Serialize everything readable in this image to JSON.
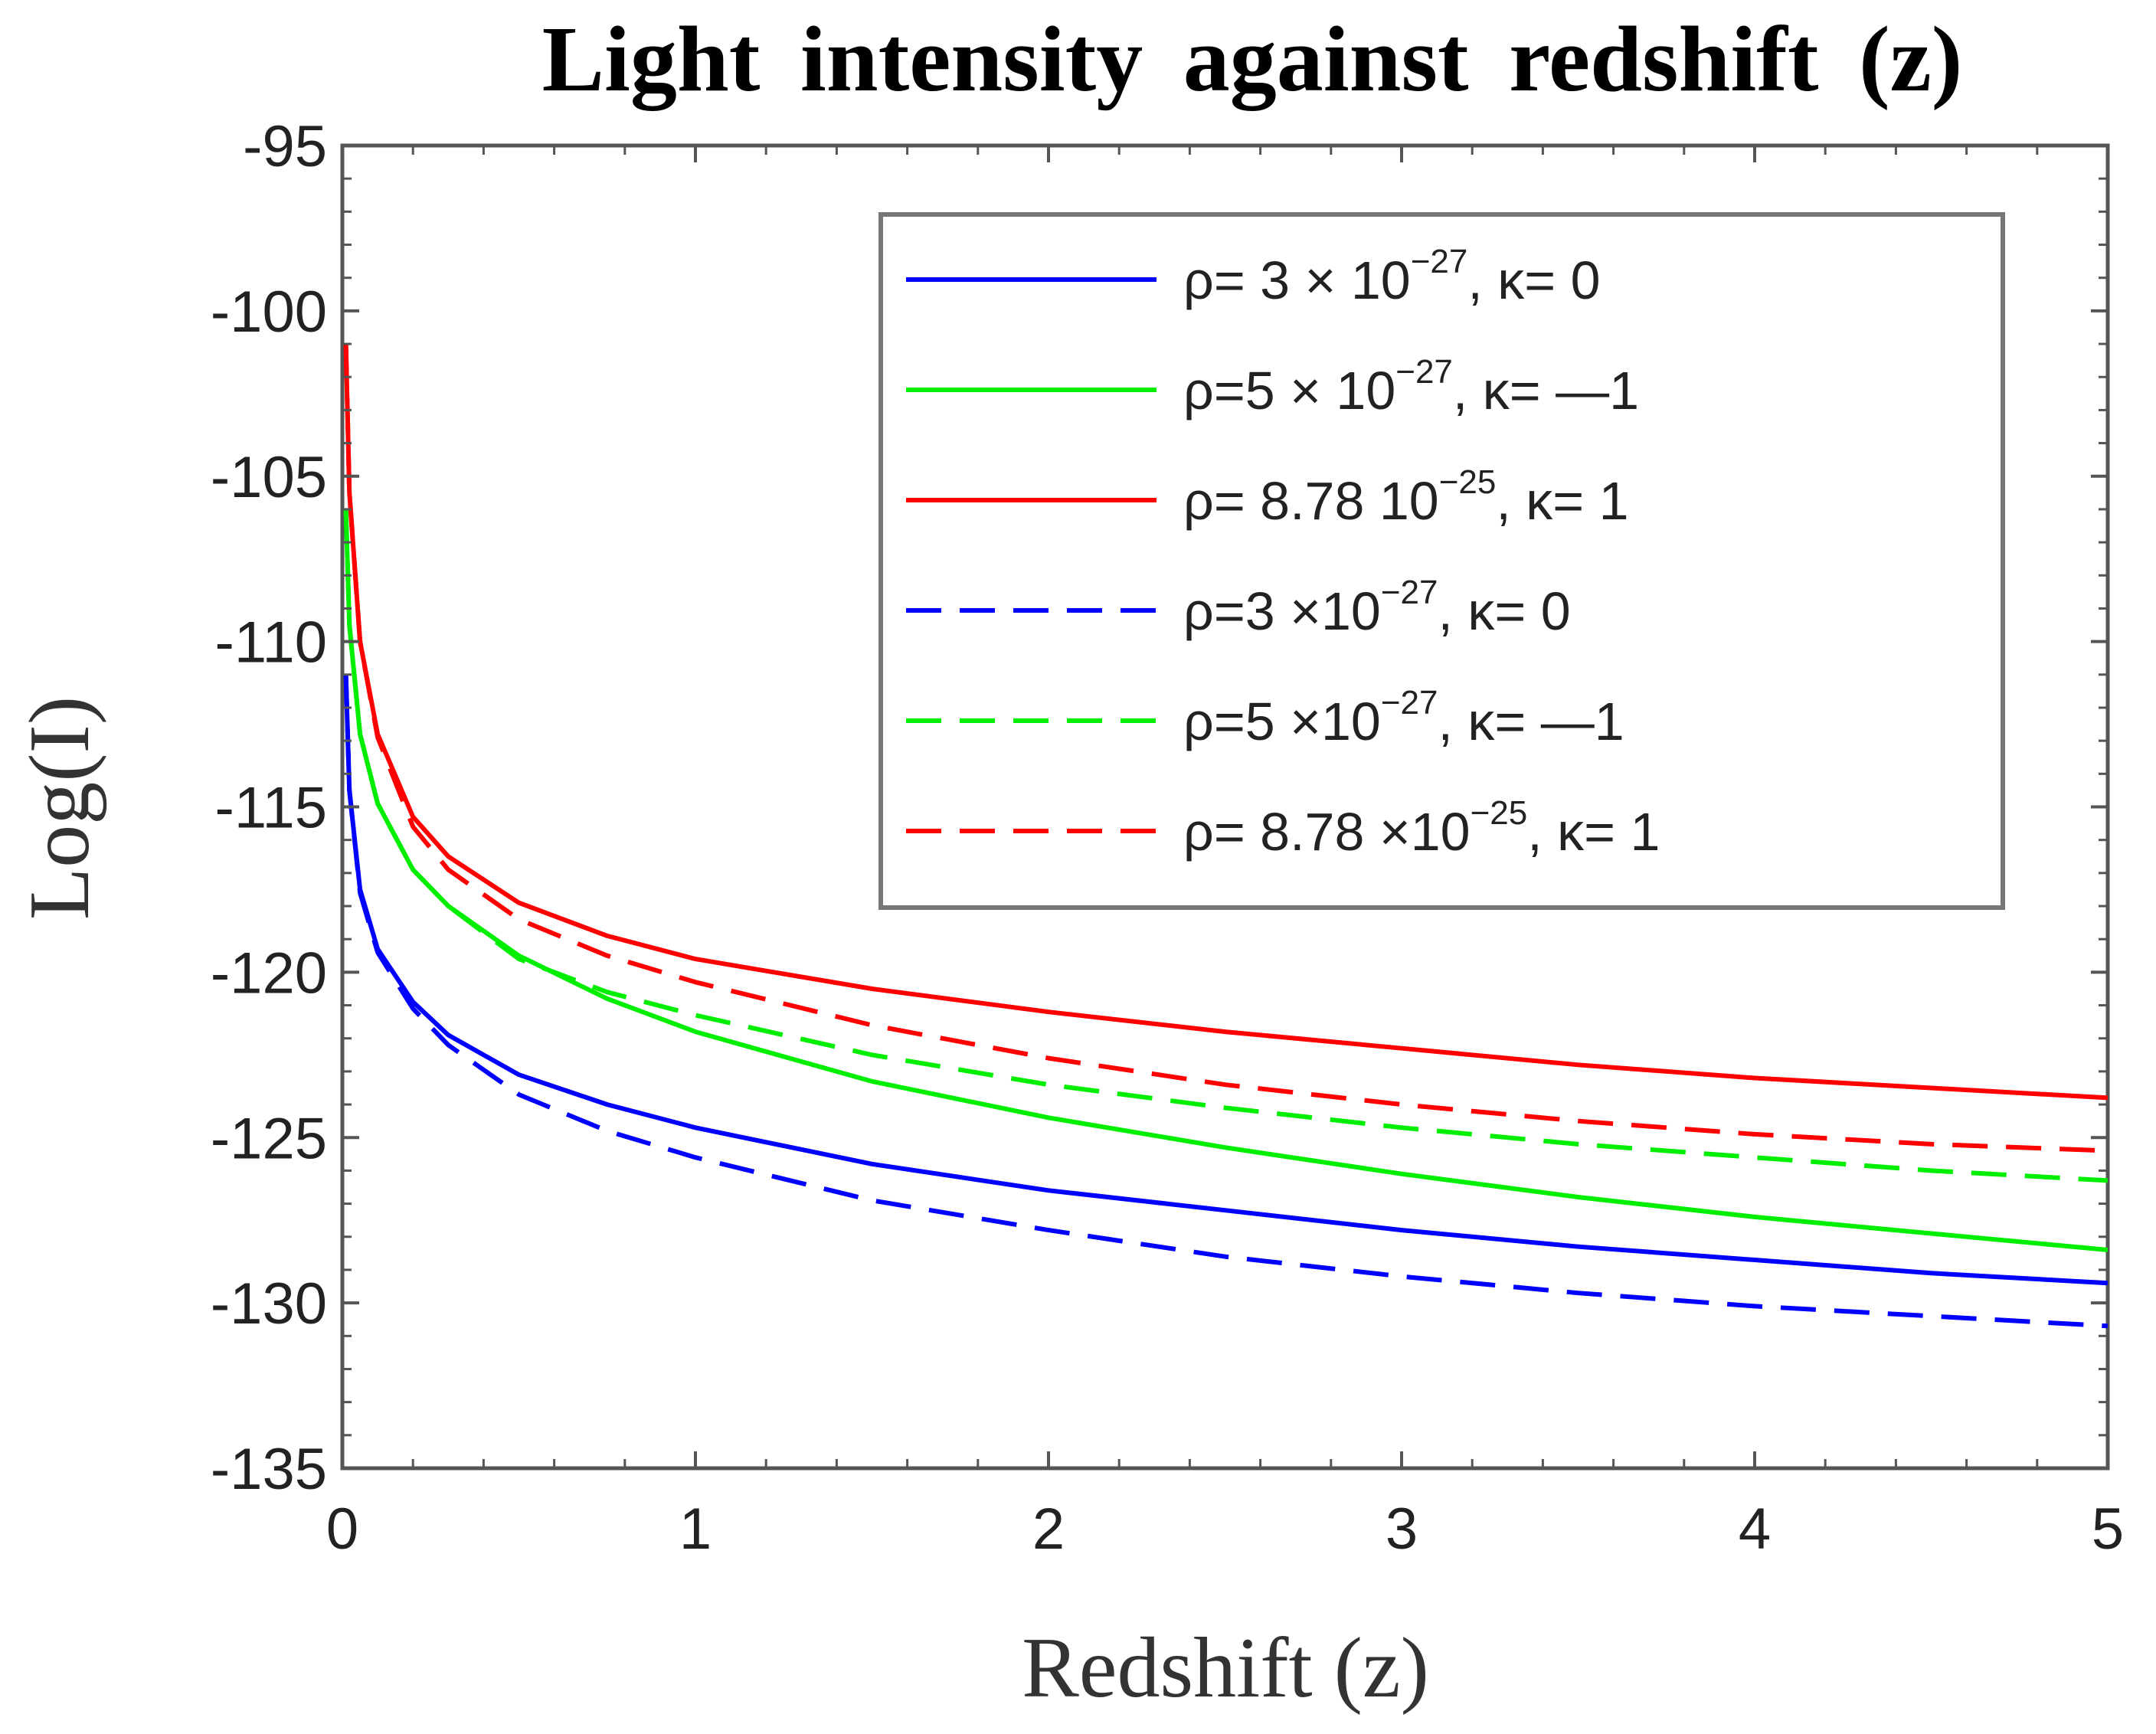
{
  "chart_data": {
    "type": "line",
    "title": "Light intensity against redshift (z)",
    "xlabel": "Redshift (z)",
    "ylabel": "Log(I)",
    "xlim": [
      0,
      5
    ],
    "ylim": [
      -135,
      -95
    ],
    "xticks": [
      0,
      1,
      2,
      3,
      4,
      5
    ],
    "yticks": [
      -95,
      -100,
      -105,
      -110,
      -115,
      -120,
      -125,
      -130,
      -135
    ],
    "grid": false,
    "legend_position": "top-right",
    "series": [
      {
        "name": "ρ= 3 × 10⁻²⁷, κ= 0",
        "legend_parts": [
          "ρ= 3 × 10",
          "−27",
          ", κ= 0"
        ],
        "color": "#0000ff",
        "style": "solid",
        "x": [
          0.01,
          0.02,
          0.05,
          0.1,
          0.2,
          0.3,
          0.5,
          0.75,
          1,
          1.5,
          2,
          2.5,
          3,
          3.5,
          4,
          4.5,
          5
        ],
        "y": [
          -111,
          -114.5,
          -117.5,
          -119.3,
          -120.9,
          -121.9,
          -123.1,
          -124.0,
          -124.7,
          -125.8,
          -126.6,
          -127.2,
          -127.8,
          -128.3,
          -128.7,
          -129.1,
          -129.4
        ]
      },
      {
        "name": "ρ=5 × 10⁻²⁷, κ= —1",
        "legend_parts": [
          "ρ=5 × 10",
          "−27",
          ", κ= —1"
        ],
        "color": "#00ee00",
        "style": "solid",
        "x": [
          0.01,
          0.02,
          0.05,
          0.1,
          0.2,
          0.3,
          0.5,
          0.75,
          1,
          1.5,
          2,
          2.5,
          3,
          3.5,
          4,
          4.5,
          5
        ],
        "y": [
          -106,
          -109.5,
          -112.8,
          -114.9,
          -116.9,
          -118.0,
          -119.5,
          -120.8,
          -121.8,
          -123.3,
          -124.4,
          -125.3,
          -126.1,
          -126.8,
          -127.4,
          -127.9,
          -128.4
        ]
      },
      {
        "name": "ρ= 8.78 10⁻²⁵, κ= 1",
        "legend_parts": [
          "ρ= 8.78 10",
          "−25",
          ", κ= 1"
        ],
        "color": "#ff0000",
        "style": "solid",
        "x": [
          0.01,
          0.02,
          0.05,
          0.1,
          0.2,
          0.3,
          0.5,
          0.75,
          1,
          1.5,
          2,
          2.5,
          3,
          3.5,
          4,
          4.5,
          5
        ],
        "y": [
          -101,
          -105.5,
          -110.0,
          -112.8,
          -115.3,
          -116.5,
          -117.9,
          -118.9,
          -119.6,
          -120.5,
          -121.2,
          -121.8,
          -122.3,
          -122.8,
          -123.2,
          -123.5,
          -123.8
        ]
      },
      {
        "name": "ρ=3 ×10⁻²⁷, κ= 0",
        "legend_parts": [
          "ρ=3 ×10",
          "−27",
          ", κ= 0"
        ],
        "color": "#0000ff",
        "style": "dashed",
        "x": [
          0.01,
          0.02,
          0.05,
          0.1,
          0.2,
          0.3,
          0.5,
          0.75,
          1,
          1.5,
          2,
          2.5,
          3,
          3.5,
          4,
          4.5,
          5
        ],
        "y": [
          -111,
          -114.5,
          -117.6,
          -119.4,
          -121.1,
          -122.2,
          -123.7,
          -124.8,
          -125.6,
          -126.9,
          -127.8,
          -128.6,
          -129.2,
          -129.7,
          -130.1,
          -130.4,
          -130.7
        ]
      },
      {
        "name": "ρ=5 ×10⁻²⁷, κ= —1",
        "legend_parts": [
          "ρ=5 ×10",
          "−27",
          ", κ= —1"
        ],
        "color": "#00ee00",
        "style": "dashed",
        "x": [
          0.01,
          0.02,
          0.05,
          0.1,
          0.2,
          0.3,
          0.5,
          0.75,
          1,
          1.5,
          2,
          2.5,
          3,
          3.5,
          4,
          4.5,
          5
        ],
        "y": [
          -106,
          -109.5,
          -112.8,
          -114.9,
          -116.9,
          -118.0,
          -119.6,
          -120.6,
          -121.3,
          -122.5,
          -123.4,
          -124.1,
          -124.7,
          -125.2,
          -125.6,
          -126.0,
          -126.3
        ]
      },
      {
        "name": "ρ= 8.78 ×10⁻²⁵, κ= 1",
        "legend_parts": [
          "ρ= 8.78 ×10",
          "−25",
          ", κ= 1"
        ],
        "color": "#ff0000",
        "style": "dashed",
        "x": [
          0.01,
          0.02,
          0.05,
          0.1,
          0.2,
          0.3,
          0.5,
          0.75,
          1,
          1.5,
          2,
          2.5,
          3,
          3.5,
          4,
          4.5,
          5
        ],
        "y": [
          -101,
          -105.5,
          -110.0,
          -112.9,
          -115.6,
          -116.9,
          -118.4,
          -119.5,
          -120.3,
          -121.6,
          -122.6,
          -123.4,
          -124.0,
          -124.5,
          -124.9,
          -125.2,
          -125.4
        ]
      }
    ]
  }
}
